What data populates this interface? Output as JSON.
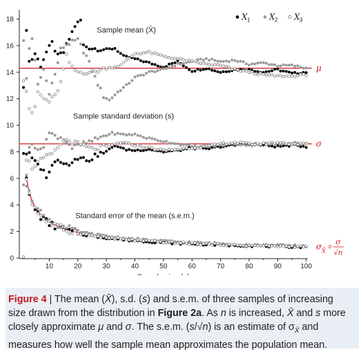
{
  "chart_data": {
    "type": "scatter",
    "xlabel_parts": [
      "Sample size (",
      "n",
      ")"
    ],
    "xlim": [
      0,
      102
    ],
    "ylim": [
      0,
      18.5
    ],
    "x_ticks": [
      10,
      20,
      30,
      40,
      50,
      60,
      70,
      80,
      90,
      100
    ],
    "y_ticks": [
      0,
      2,
      4,
      6,
      8,
      10,
      12,
      14,
      16,
      18
    ],
    "legend": {
      "placement": "top-right",
      "entries": [
        {
          "symbol": "●",
          "name": "X",
          "sub": "1"
        },
        {
          "symbol": "●",
          "name": "X",
          "sub": "2"
        },
        {
          "symbol": "○",
          "name": "X",
          "sub": "3"
        }
      ]
    },
    "panel_labels": {
      "mean": "Sample mean (X̄)",
      "sd": "Sample standard deviation (s)",
      "sem": "Standard error of the mean (s.e.m.)"
    },
    "reference_lines": [
      {
        "label": "μ",
        "value": 14.3
      },
      {
        "label": "σ",
        "value": 8.6
      },
      {
        "label_left": "σ",
        "label_sub": "X̄",
        "label_eq": "=",
        "label_num": "σ",
        "label_den": "√n",
        "curve": "8.6/sqrt(n)"
      }
    ],
    "colors": {
      "X1": "#000000",
      "X2": "#9a9a9a",
      "X3": "#808080",
      "reference": "#d7191c",
      "axis": "#231f20"
    },
    "series_groups": [
      {
        "statistic": "mean",
        "series": [
          {
            "name": "X1",
            "marker": "filled-black",
            "control_points": [
              [
                1,
                12.7
              ],
              [
                2,
                17.3
              ],
              [
                3,
                14.8
              ],
              [
                4,
                15.0
              ],
              [
                5,
                15.4
              ],
              [
                7,
                14.5
              ],
              [
                9,
                15.5
              ],
              [
                11,
                16.2
              ],
              [
                13,
                15.2
              ],
              [
                15,
                15.5
              ],
              [
                17,
                16.5
              ],
              [
                19,
                17.5
              ],
              [
                21,
                17.9
              ],
              [
                22,
                16.0
              ],
              [
                25,
                15.8
              ],
              [
                30,
                15.7
              ],
              [
                33,
                15.8
              ],
              [
                36,
                15.2
              ],
              [
                40,
                15.0
              ],
              [
                45,
                14.7
              ],
              [
                50,
                14.4
              ],
              [
                55,
                14.8
              ],
              [
                60,
                14.1
              ],
              [
                65,
                14.3
              ],
              [
                70,
                14.0
              ],
              [
                75,
                14.2
              ],
              [
                80,
                14.2
              ],
              [
                85,
                14.0
              ],
              [
                90,
                14.2
              ],
              [
                95,
                13.9
              ],
              [
                100,
                14.0
              ]
            ]
          },
          {
            "name": "X2",
            "marker": "filled-grey",
            "control_points": [
              [
                1,
                16.3
              ],
              [
                2,
                13.5
              ],
              [
                3,
                15.8
              ],
              [
                4,
                16.6
              ],
              [
                6,
                13.0
              ],
              [
                8,
                14.2
              ],
              [
                10,
                12.5
              ],
              [
                12,
                13.8
              ],
              [
                14,
                15.7
              ],
              [
                16,
                16.1
              ],
              [
                20,
                16.4
              ],
              [
                23,
                15.2
              ],
              [
                26,
                13.6
              ],
              [
                29,
                12.2
              ],
              [
                31,
                11.9
              ],
              [
                34,
                12.5
              ],
              [
                37,
                13.0
              ],
              [
                40,
                13.6
              ],
              [
                45,
                14.0
              ],
              [
                50,
                14.2
              ],
              [
                55,
                14.6
              ],
              [
                60,
                14.8
              ],
              [
                65,
                15.0
              ],
              [
                70,
                14.8
              ],
              [
                75,
                14.9
              ],
              [
                80,
                14.6
              ],
              [
                85,
                14.7
              ],
              [
                90,
                14.5
              ],
              [
                95,
                14.5
              ],
              [
                100,
                14.3
              ]
            ]
          },
          {
            "name": "X3",
            "marker": "open",
            "control_points": [
              [
                1,
                13.5
              ],
              [
                2,
                12.6
              ],
              [
                3,
                11.3
              ],
              [
                4,
                10.8
              ],
              [
                5,
                11.4
              ],
              [
                6,
                12.5
              ],
              [
                8,
                12.0
              ],
              [
                10,
                11.8
              ],
              [
                12,
                12.2
              ],
              [
                14,
                13.2
              ],
              [
                16,
                15.2
              ],
              [
                18,
                14.3
              ],
              [
                20,
                14.0
              ],
              [
                25,
                14.0
              ],
              [
                30,
                14.3
              ],
              [
                35,
                14.5
              ],
              [
                40,
                15.4
              ],
              [
                45,
                15.5
              ],
              [
                50,
                15.2
              ],
              [
                55,
                15.0
              ],
              [
                60,
                14.8
              ],
              [
                65,
                14.6
              ],
              [
                70,
                14.5
              ],
              [
                75,
                14.2
              ],
              [
                80,
                14.0
              ],
              [
                85,
                13.8
              ],
              [
                90,
                13.7
              ],
              [
                95,
                13.7
              ],
              [
                100,
                13.8
              ]
            ]
          }
        ]
      },
      {
        "statistic": "sd",
        "series": [
          {
            "name": "X1",
            "marker": "filled-black",
            "control_points": [
              [
                2,
                7.9
              ],
              [
                3,
                7.8
              ],
              [
                5,
                7.2
              ],
              [
                7,
                6.8
              ],
              [
                9,
                6.2
              ],
              [
                11,
                6.9
              ],
              [
                13,
                7.5
              ],
              [
                15,
                7.2
              ],
              [
                17,
                7.0
              ],
              [
                19,
                7.6
              ],
              [
                21,
                7.5
              ],
              [
                24,
                7.4
              ],
              [
                27,
                7.8
              ],
              [
                30,
                8.0
              ],
              [
                33,
                8.5
              ],
              [
                36,
                8.2
              ],
              [
                40,
                8.1
              ],
              [
                45,
                8.2
              ],
              [
                50,
                8.0
              ],
              [
                55,
                8.1
              ],
              [
                60,
                8.3
              ],
              [
                65,
                8.2
              ],
              [
                70,
                8.4
              ],
              [
                75,
                8.5
              ],
              [
                80,
                8.6
              ],
              [
                85,
                8.5
              ],
              [
                90,
                8.4
              ],
              [
                95,
                8.5
              ],
              [
                100,
                8.4
              ]
            ]
          },
          {
            "name": "X2",
            "marker": "filled-grey",
            "control_points": [
              [
                2,
                5.4
              ],
              [
                3,
                8.5
              ],
              [
                4,
                8.7
              ],
              [
                6,
                8.0
              ],
              [
                8,
                8.5
              ],
              [
                10,
                9.4
              ],
              [
                12,
                9.2
              ],
              [
                14,
                9.1
              ],
              [
                16,
                8.8
              ],
              [
                18,
                8.3
              ],
              [
                22,
                8.6
              ],
              [
                25,
                8.8
              ],
              [
                28,
                9.1
              ],
              [
                32,
                9.4
              ],
              [
                36,
                9.3
              ],
              [
                40,
                9.3
              ],
              [
                45,
                9.0
              ],
              [
                50,
                8.8
              ],
              [
                55,
                8.6
              ],
              [
                60,
                8.4
              ],
              [
                65,
                8.4
              ],
              [
                70,
                8.5
              ],
              [
                75,
                8.6
              ],
              [
                80,
                8.5
              ],
              [
                85,
                8.6
              ],
              [
                90,
                8.6
              ],
              [
                95,
                8.7
              ],
              [
                100,
                8.6
              ]
            ]
          },
          {
            "name": "X3",
            "marker": "open",
            "control_points": [
              [
                1,
                0.2
              ],
              [
                2,
                7.5
              ],
              [
                3,
                7.2
              ],
              [
                4,
                6.8
              ],
              [
                6,
                7.2
              ],
              [
                8,
                7.5
              ],
              [
                10,
                7.7
              ],
              [
                12,
                8.0
              ],
              [
                14,
                8.6
              ],
              [
                16,
                8.9
              ],
              [
                20,
                8.6
              ],
              [
                25,
                8.2
              ],
              [
                30,
                8.4
              ],
              [
                35,
                8.7
              ],
              [
                40,
                8.5
              ],
              [
                45,
                8.3
              ],
              [
                50,
                8.1
              ],
              [
                55,
                8.2
              ],
              [
                60,
                8.3
              ],
              [
                65,
                8.4
              ],
              [
                70,
                8.6
              ],
              [
                75,
                8.7
              ],
              [
                80,
                8.6
              ],
              [
                85,
                8.6
              ],
              [
                90,
                8.7
              ],
              [
                95,
                8.6
              ],
              [
                100,
                8.6
              ]
            ]
          }
        ]
      },
      {
        "statistic": "sem",
        "series": [
          {
            "name": "X1",
            "marker": "filled-black",
            "factor": 0.96
          },
          {
            "name": "X2",
            "marker": "filled-grey",
            "factor": 1.05
          },
          {
            "name": "X3",
            "marker": "open",
            "factor": 0.98
          }
        ]
      }
    ]
  },
  "caption": {
    "prefix": "Figure 4",
    "sep": " | ",
    "p1": "The mean (",
    "xbar": "X̄",
    "p2": "), s.d. (",
    "s1": "s",
    "p3": ") and s.e.m. of three samples of increasing size drawn from the distribution in ",
    "ref": "Figure 2a",
    "p4": ". As ",
    "n1": "n",
    "p5": " is increased, ",
    "xbar2": "X̄",
    "p6": " and ",
    "s2": "s",
    "p7": " more closely approximate ",
    "mu": "μ",
    "p8": " and ",
    "sigma": "σ",
    "p9": ". The s.e.m. (",
    "s3": "s",
    "p10": "/√",
    "n2": "n",
    "p11": ") is an estimate of σ",
    "sub": "X̄",
    "p12": " and measures how well the sample mean approximates the population mean."
  }
}
